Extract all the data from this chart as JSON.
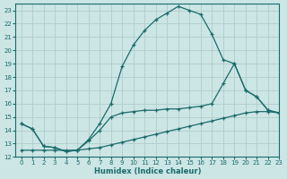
{
  "xlabel": "Humidex (Indice chaleur)",
  "xlim": [
    -0.5,
    23
  ],
  "ylim": [
    12,
    23.5
  ],
  "yticks": [
    12,
    13,
    14,
    15,
    16,
    17,
    18,
    19,
    20,
    21,
    22,
    23
  ],
  "xticks": [
    0,
    1,
    2,
    3,
    4,
    5,
    6,
    7,
    8,
    9,
    10,
    11,
    12,
    13,
    14,
    15,
    16,
    17,
    18,
    19,
    20,
    21,
    22,
    23
  ],
  "bg_color": "#cce5e5",
  "grid_color": "#b0cdcd",
  "line_color": "#1a6b6b",
  "curve1_x": [
    0,
    1,
    2,
    3,
    4,
    5,
    6,
    7,
    8,
    9,
    10,
    11,
    12,
    13,
    14,
    15,
    16,
    17,
    18,
    19,
    20,
    21,
    22,
    23
  ],
  "curve1_y": [
    14.5,
    14.1,
    12.8,
    12.7,
    12.4,
    12.5,
    13.3,
    14.5,
    16.0,
    18.8,
    20.4,
    21.5,
    22.3,
    22.8,
    23.3,
    23.0,
    22.7,
    21.2,
    19.3,
    19.0,
    17.0,
    16.5,
    15.5,
    15.3
  ],
  "curve2_x": [
    0,
    1,
    2,
    3,
    4,
    5,
    6,
    7,
    8,
    9,
    10,
    11,
    12,
    13,
    14,
    15,
    16,
    17,
    18,
    19,
    20,
    21,
    22,
    23
  ],
  "curve2_y": [
    14.5,
    14.1,
    12.8,
    12.7,
    12.4,
    12.5,
    13.2,
    14.0,
    15.0,
    15.3,
    15.4,
    15.5,
    15.5,
    15.6,
    15.6,
    15.7,
    15.8,
    16.0,
    17.5,
    19.0,
    17.0,
    16.5,
    15.5,
    15.3
  ],
  "curve3_x": [
    0,
    1,
    2,
    3,
    4,
    5,
    6,
    7,
    8,
    9,
    10,
    11,
    12,
    13,
    14,
    15,
    16,
    17,
    18,
    19,
    20,
    21,
    22,
    23
  ],
  "curve3_y": [
    12.5,
    12.5,
    12.5,
    12.5,
    12.5,
    12.5,
    12.6,
    12.7,
    12.9,
    13.1,
    13.3,
    13.5,
    13.7,
    13.9,
    14.1,
    14.3,
    14.5,
    14.7,
    14.9,
    15.1,
    15.3,
    15.4,
    15.4,
    15.3
  ]
}
